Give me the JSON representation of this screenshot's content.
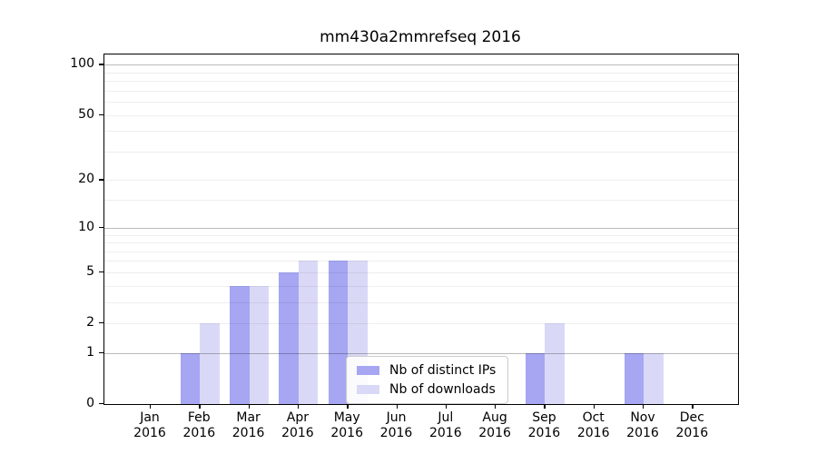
{
  "chart_data": {
    "type": "bar",
    "title": "mm430a2mmrefseq 2016",
    "categories": [
      "Jan",
      "Feb",
      "Mar",
      "Apr",
      "May",
      "Jun",
      "Jul",
      "Aug",
      "Sep",
      "Oct",
      "Nov",
      "Dec"
    ],
    "x_tick_second_line": "2016",
    "series": [
      {
        "name": "Nb of distinct IPs",
        "color": "#a6a6f3",
        "values": [
          0,
          1,
          4,
          5,
          6,
          0,
          0,
          0,
          1,
          0,
          1,
          0
        ]
      },
      {
        "name": "Nb of downloads",
        "color": "#d9d9f7",
        "values": [
          0,
          2,
          4,
          6,
          6,
          0,
          0,
          0,
          2,
          0,
          1,
          0
        ]
      }
    ],
    "y_axis": {
      "scale": "log1p",
      "tick_values": [
        0,
        1,
        2,
        5,
        10,
        20,
        50,
        100
      ],
      "major_gridlines": [
        1,
        10,
        100
      ],
      "minor_gridlines": [
        2,
        3,
        4,
        5,
        6,
        7,
        8,
        9,
        15,
        20,
        30,
        40,
        50,
        60,
        70,
        80,
        90
      ],
      "ylim": [
        0,
        115
      ]
    },
    "legend": {
      "position": "inside-bottom-center"
    },
    "grid": true
  }
}
